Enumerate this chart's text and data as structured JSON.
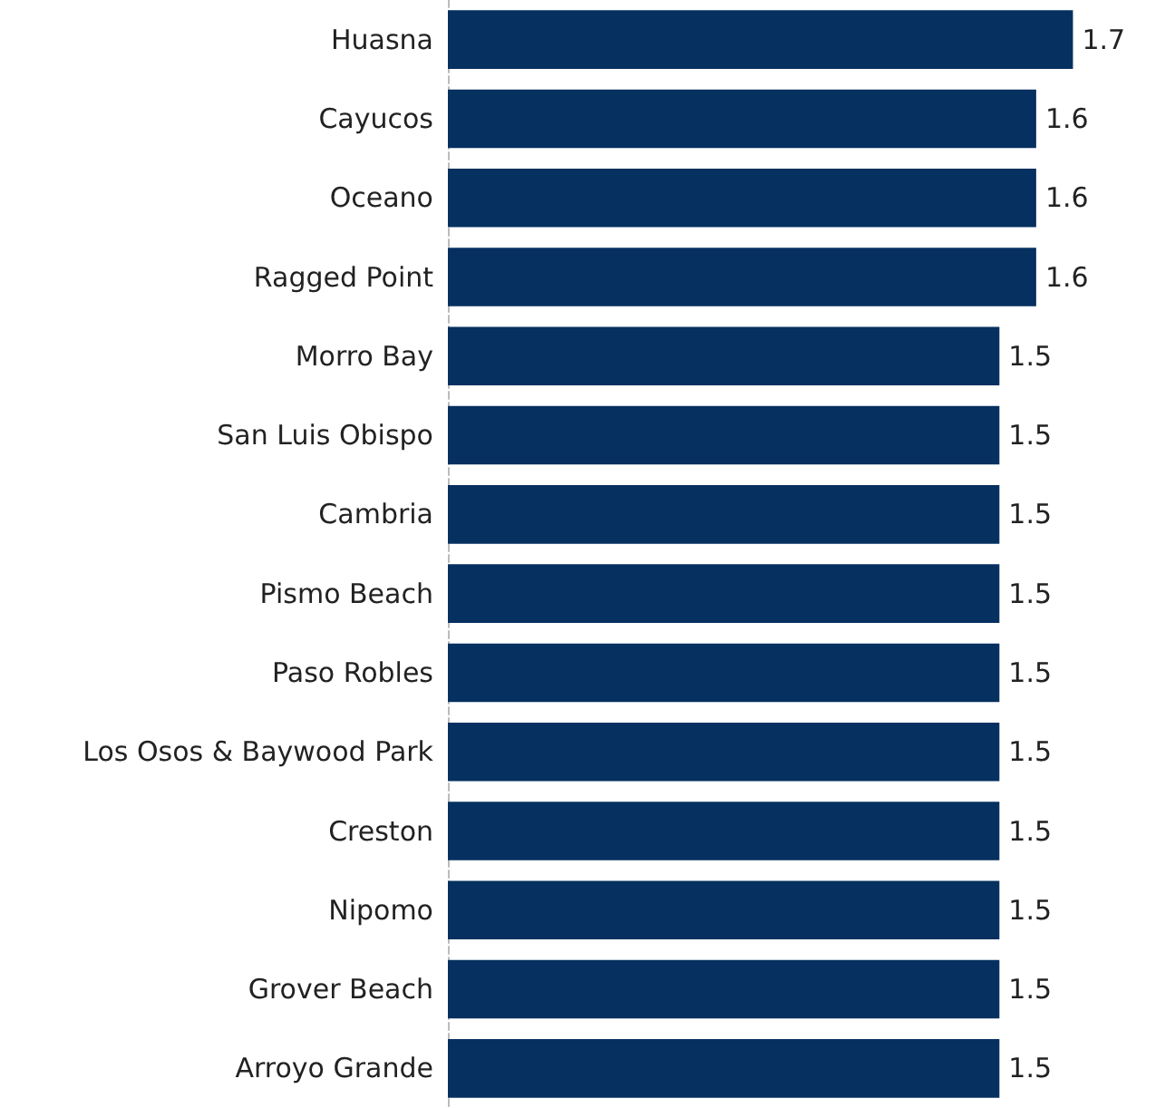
{
  "chart_data": {
    "type": "bar",
    "orientation": "horizontal",
    "categories": [
      "Huasna",
      "Cayucos",
      "Oceano",
      "Ragged Point",
      "Morro Bay",
      "San Luis Obispo",
      "Cambria",
      "Pismo Beach",
      "Paso Robles",
      "Los Osos & Baywood Park",
      "Creston",
      "Nipomo",
      "Grover Beach",
      "Arroyo Grande"
    ],
    "values": [
      1.7,
      1.6,
      1.6,
      1.6,
      1.5,
      1.5,
      1.5,
      1.5,
      1.5,
      1.5,
      1.5,
      1.5,
      1.5,
      1.5
    ],
    "color": "#05305f",
    "data_labels": true
  }
}
